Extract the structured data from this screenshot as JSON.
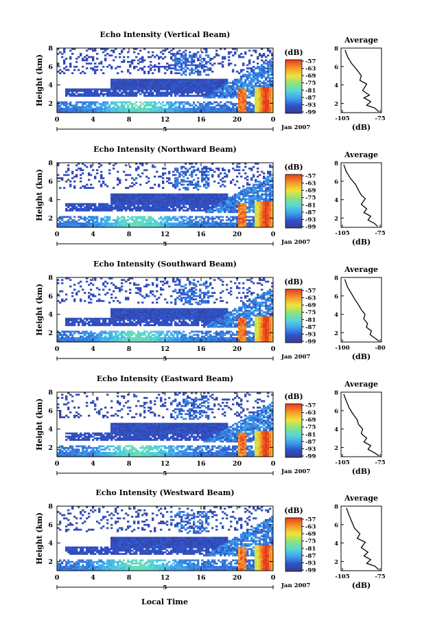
{
  "figure": {
    "xlabel": "Local Time",
    "date_label": "Jan 2007",
    "day_label": "5",
    "colorbar_unit": "(dB)",
    "colorbar_ticks": [
      "-57",
      "-63",
      "-69",
      "-75",
      "-81",
      "-87",
      "-93",
      "-99"
    ],
    "colors": {
      "vmin_color": "#3b3b8f",
      "vmax_color": "#e83a1e"
    }
  },
  "chart_data": [
    {
      "type": "heatmap",
      "title": "Echo Intensity (Vertical Beam)",
      "ylabel": "Height (km)",
      "xlabel": "",
      "xticks": [
        "0",
        "4",
        "8",
        "12",
        "16",
        "20",
        "0"
      ],
      "yticks": [
        "2",
        "4",
        "6",
        "8"
      ],
      "xlim": [
        0,
        24
      ],
      "ylim": [
        1,
        8
      ],
      "vmin": -99,
      "vmax": -57,
      "profile": {
        "title": "Average",
        "xlabel": "(dB)",
        "xticks": [
          "-105",
          "-75"
        ],
        "yticks": [
          "2",
          "4",
          "6",
          "8"
        ],
        "xlim": [
          -105,
          -75
        ],
        "ylim": [
          1,
          8
        ],
        "x": [
          -102,
          -100,
          -97,
          -93,
          -90,
          -91,
          -86,
          -89,
          -84,
          -88,
          -83,
          -86,
          -80,
          -77
        ],
        "y": [
          7.8,
          7.0,
          6.3,
          5.6,
          5.0,
          4.5,
          4.1,
          3.4,
          2.9,
          2.6,
          2.2,
          1.8,
          1.5,
          1.1
        ]
      }
    },
    {
      "type": "heatmap",
      "title": "Echo Intensity (Northward Beam)",
      "ylabel": "Height (km)",
      "xlabel": "",
      "xticks": [
        "0",
        "4",
        "8",
        "12",
        "16",
        "20",
        "0"
      ],
      "yticks": [
        "2",
        "4",
        "6",
        "8"
      ],
      "xlim": [
        0,
        24
      ],
      "ylim": [
        1,
        8
      ],
      "vmin": -99,
      "vmax": -57,
      "profile": {
        "title": "Average",
        "xlabel": "(dB)",
        "xticks": [
          "-105",
          "-75"
        ],
        "yticks": [
          "2",
          "4",
          "6",
          "8"
        ],
        "xlim": [
          -105,
          -75
        ],
        "ylim": [
          1,
          8
        ],
        "x": [
          -103,
          -101,
          -98,
          -94,
          -92,
          -90,
          -87,
          -90,
          -86,
          -88,
          -83,
          -85,
          -80,
          -78
        ],
        "y": [
          7.8,
          7.0,
          6.3,
          5.6,
          5.0,
          4.5,
          4.1,
          3.5,
          3.0,
          2.6,
          2.2,
          1.8,
          1.4,
          1.1
        ]
      }
    },
    {
      "type": "heatmap",
      "title": "Echo Intensity (Southward Beam)",
      "ylabel": "Height (km)",
      "xlabel": "",
      "xticks": [
        "0",
        "4",
        "8",
        "12",
        "16",
        "20",
        "0"
      ],
      "yticks": [
        "2",
        "4",
        "6",
        "8"
      ],
      "xlim": [
        0,
        24
      ],
      "ylim": [
        1,
        8
      ],
      "vmin": -99,
      "vmax": -57,
      "profile": {
        "title": "Average",
        "xlabel": "(dB)",
        "xticks": [
          "-100",
          "-80"
        ],
        "yticks": [
          "2",
          "4",
          "6",
          "8"
        ],
        "xlim": [
          -107,
          -75
        ],
        "ylim": [
          1,
          8
        ],
        "x": [
          -104,
          -102,
          -99,
          -96,
          -93,
          -91,
          -88,
          -89,
          -86,
          -87,
          -83,
          -84,
          -80,
          -77
        ],
        "y": [
          7.8,
          7.0,
          6.3,
          5.6,
          5.0,
          4.5,
          4.0,
          3.5,
          3.0,
          2.6,
          2.2,
          1.8,
          1.4,
          1.1
        ]
      }
    },
    {
      "type": "heatmap",
      "title": "Echo Intensity (Eastward Beam)",
      "ylabel": "Height (km)",
      "xlabel": "",
      "xticks": [
        "0",
        "4",
        "8",
        "12",
        "16",
        "20",
        "0"
      ],
      "yticks": [
        "2",
        "4",
        "6",
        "8"
      ],
      "xlim": [
        0,
        24
      ],
      "ylim": [
        1,
        8
      ],
      "vmin": -99,
      "vmax": -57,
      "profile": {
        "title": "Average",
        "xlabel": "(dB)",
        "xticks": [
          "-105",
          "-75"
        ],
        "yticks": [
          "2",
          "4",
          "6",
          "8"
        ],
        "xlim": [
          -105,
          -75
        ],
        "ylim": [
          1,
          8
        ],
        "x": [
          -103,
          -101,
          -99,
          -96,
          -93,
          -92,
          -89,
          -90,
          -86,
          -88,
          -83,
          -85,
          -80,
          -77
        ],
        "y": [
          7.8,
          7.0,
          6.3,
          5.6,
          5.0,
          4.5,
          4.0,
          3.5,
          3.0,
          2.6,
          2.2,
          1.8,
          1.4,
          1.1
        ]
      }
    },
    {
      "type": "heatmap",
      "title": "Echo Intensity (Westward Beam)",
      "ylabel": "Height (km)",
      "xlabel": "Local Time",
      "xticks": [
        "0",
        "4",
        "8",
        "12",
        "16",
        "20",
        "0"
      ],
      "yticks": [
        "2",
        "4",
        "6",
        "8"
      ],
      "xlim": [
        0,
        24
      ],
      "ylim": [
        1,
        8
      ],
      "vmin": -99,
      "vmax": -57,
      "profile": {
        "title": "Average",
        "xlabel": "(dB)",
        "xticks": [
          "-105",
          "-75"
        ],
        "yticks": [
          "2",
          "4",
          "6",
          "8"
        ],
        "xlim": [
          -105,
          -75
        ],
        "ylim": [
          1,
          8
        ],
        "x": [
          -101,
          -99,
          -97,
          -95,
          -91,
          -93,
          -87,
          -90,
          -85,
          -88,
          -83,
          -86,
          -80,
          -77
        ],
        "y": [
          7.8,
          7.0,
          6.3,
          5.6,
          5.0,
          4.5,
          4.1,
          3.5,
          3.0,
          2.6,
          2.2,
          1.8,
          1.5,
          1.1
        ]
      }
    }
  ]
}
